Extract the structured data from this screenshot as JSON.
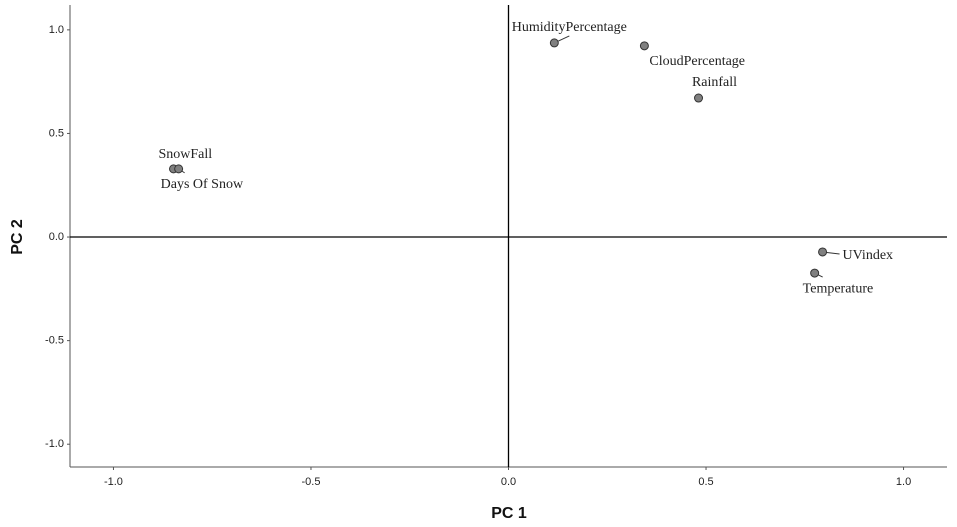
{
  "chart_data": {
    "type": "scatter",
    "x_label": "PC 1",
    "y_label": "PC 2",
    "labels": [
      "HumidityPercentage",
      "CloudPercentage",
      "Rainfall",
      "SnowFall",
      "Days Of Snow",
      "UVindex",
      "Temperature"
    ],
    "x": [
      0.116,
      0.344,
      0.481,
      -0.848,
      -0.835,
      0.795,
      0.775
    ],
    "y": [
      0.937,
      0.923,
      0.671,
      0.329,
      0.329,
      -0.072,
      -0.174
    ],
    "color": "#808080",
    "xlim": [
      -1.11,
      1.11
    ],
    "ylim": [
      -1.11,
      1.12
    ],
    "xticks": [
      {
        "value": -1,
        "label": "-1.0"
      },
      {
        "value": -0.5,
        "label": "-0.5"
      },
      {
        "value": 0,
        "label": "0.0"
      },
      {
        "value": 0.5,
        "label": "0.5"
      },
      {
        "value": 1,
        "label": "1.0"
      }
    ],
    "yticks": [
      {
        "value": -1,
        "label": "-1.0"
      },
      {
        "value": -0.5,
        "label": "-0.5"
      },
      {
        "value": 0,
        "label": "0.0"
      },
      {
        "value": 0.5,
        "label": "0.5"
      },
      {
        "value": 1,
        "label": "1.0"
      }
    ]
  }
}
